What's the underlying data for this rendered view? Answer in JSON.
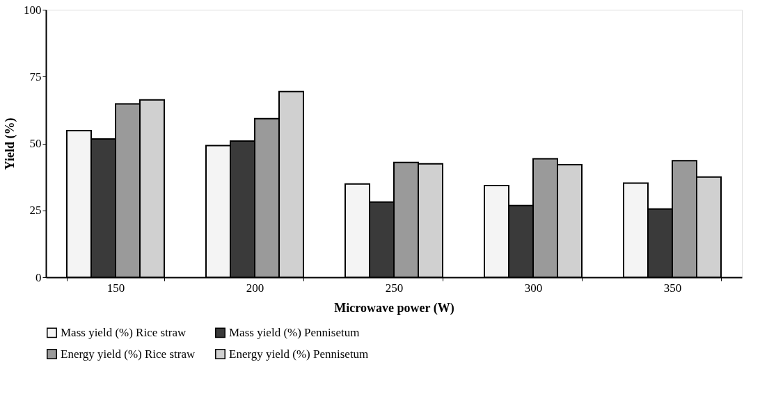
{
  "chart_data": {
    "type": "bar",
    "xlabel": "Microwave power (W)",
    "ylabel": "Yield (%)",
    "categories": [
      "150",
      "200",
      "250",
      "300",
      "350"
    ],
    "series": [
      {
        "name": "Mass yield (%) Rice  straw",
        "color": "#f4f4f4",
        "values": [
          54.8,
          49.2,
          34.9,
          34.3,
          35.2
        ]
      },
      {
        "name": "Mass yield (%) Pennisetum",
        "color": "#3a3a3a",
        "values": [
          51.7,
          50.9,
          28.1,
          26.8,
          25.5
        ]
      },
      {
        "name": "Energy yield (%) Rice straw",
        "color": "#9a9a9a",
        "values": [
          64.8,
          59.3,
          42.9,
          44.3,
          43.6
        ]
      },
      {
        "name": "Energy yield (%) Pennisetum",
        "color": "#d0d0d0",
        "values": [
          66.3,
          69.4,
          42.4,
          42.1,
          37.5
        ]
      }
    ],
    "ylim": [
      0,
      100
    ],
    "yticks": [
      0,
      25,
      50,
      75,
      100
    ],
    "grid": false,
    "legend": "bottom"
  }
}
